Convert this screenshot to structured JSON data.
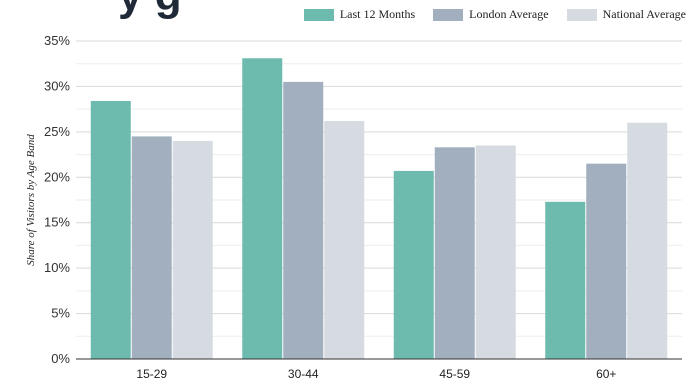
{
  "title_partial": "y g",
  "legend": [
    {
      "label": "Last 12 Months",
      "color": "#6dbaae"
    },
    {
      "label": "London Average",
      "color": "#a2afbf"
    },
    {
      "label": "National Average",
      "color": "#d6dae1"
    }
  ],
  "chart_data": {
    "type": "bar",
    "categories": [
      "15-29",
      "30-44",
      "45-59",
      "60+"
    ],
    "series": [
      {
        "name": "Last 12 Months",
        "color": "#6dbaae",
        "values": [
          28.4,
          33.1,
          20.7,
          17.3
        ]
      },
      {
        "name": "London Average",
        "color": "#a2afbf",
        "values": [
          24.5,
          30.5,
          23.3,
          21.5
        ]
      },
      {
        "name": "National Average",
        "color": "#d6dae1",
        "values": [
          24.0,
          26.2,
          23.5,
          26.0
        ]
      }
    ],
    "ylabel": "Share of Visitors by Age Band",
    "ylim": [
      0,
      35
    ],
    "yticks": [
      "0%",
      "5%",
      "10%",
      "15%",
      "20%",
      "25%",
      "30%",
      "35%"
    ],
    "grid": true,
    "legend_position": "top-right"
  }
}
